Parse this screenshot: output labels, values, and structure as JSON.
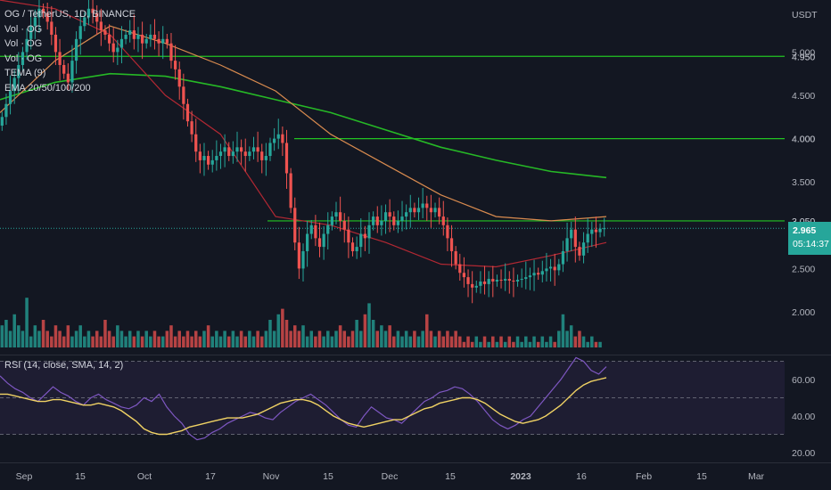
{
  "header": {
    "symbol_line": "OG / TetherUS, 1D, BINANCE",
    "indicators": [
      "Vol · OG",
      "Vol · OG",
      "Vol · OG",
      "TEMA (9)",
      "EMA 20/50/100/200"
    ]
  },
  "rsi_label": "RSI (14, close, SMA, 14, 2)",
  "price_axis_unit": "USDT",
  "current_price": "2.965",
  "countdown": "05:14:37",
  "colors": {
    "up": "#26a69a",
    "down": "#ef5350",
    "background": "#131722",
    "level_lines": "#22c422"
  },
  "chart_data": [
    {
      "type": "candlestick",
      "title": "OG / TetherUS, 1D, BINANCE",
      "y_ticks": [
        "5.000",
        "4.500",
        "4.000",
        "3.500",
        "2.500",
        "2.000"
      ],
      "x_ticks": [
        "Sep",
        "15",
        "Oct",
        "17",
        "Nov",
        "15",
        "Dec",
        "15",
        "2023",
        "16",
        "Feb",
        "15",
        "Mar"
      ],
      "horizontal_levels": [
        4.95,
        4.0,
        3.05
      ],
      "closes": [
        4.25,
        4.4,
        4.55,
        4.7,
        4.85,
        5.0,
        5.15,
        5.3,
        5.4,
        5.5,
        5.45,
        5.35,
        5.2,
        5.0,
        4.85,
        4.75,
        4.65,
        4.9,
        5.15,
        5.3,
        5.4,
        5.5,
        5.45,
        5.35,
        5.25,
        5.2,
        5.1,
        5.0,
        5.05,
        5.15,
        5.2,
        5.25,
        5.15,
        5.2,
        5.1,
        5.15,
        5.2,
        5.15,
        5.1,
        5.15,
        5.1,
        4.9,
        4.8,
        4.6,
        4.4,
        4.2,
        4.05,
        3.85,
        3.75,
        3.8,
        3.7,
        3.75,
        3.8,
        3.85,
        3.9,
        3.8,
        3.85,
        3.9,
        3.85,
        3.8,
        3.85,
        3.9,
        3.85,
        3.75,
        3.8,
        3.95,
        4.0,
        4.05,
        3.95,
        3.6,
        3.2,
        2.8,
        2.5,
        2.7,
        2.9,
        3.0,
        2.85,
        2.75,
        2.9,
        3.0,
        3.1,
        3.15,
        3.05,
        2.95,
        2.8,
        2.7,
        2.75,
        2.9,
        2.85,
        3.0,
        3.1,
        3.0,
        3.05,
        3.15,
        3.1,
        3.0,
        3.05,
        3.1,
        3.15,
        3.2,
        3.15,
        3.2,
        3.25,
        3.2,
        3.15,
        3.2,
        3.1,
        3.0,
        2.85,
        2.7,
        2.55,
        2.45,
        2.4,
        2.32,
        2.28,
        2.3,
        2.35,
        2.32,
        2.38,
        2.35,
        2.37,
        2.36,
        2.38,
        2.36,
        2.35,
        2.37,
        2.38,
        2.4,
        2.42,
        2.45,
        2.43,
        2.47,
        2.5,
        2.52,
        2.48,
        2.55,
        2.7,
        2.85,
        2.95,
        2.75,
        2.65,
        2.8,
        2.9,
        2.95,
        2.92,
        2.96,
        2.965
      ],
      "ema200": [
        4.45,
        4.65,
        4.75,
        4.72,
        4.6,
        4.45,
        4.3,
        4.1,
        3.9,
        3.75,
        3.62,
        3.55
      ],
      "ema100": [
        4.3,
        4.9,
        5.3,
        5.1,
        4.85,
        4.55,
        4.05,
        3.7,
        3.35,
        3.1,
        3.05,
        3.1
      ],
      "ema50": [
        5.6,
        5.5,
        5.2,
        4.5,
        4.05,
        3.1,
        3.0,
        2.8,
        2.55,
        2.52,
        2.65,
        2.8
      ]
    },
    {
      "type": "bar",
      "title": "Vol · OG",
      "values": [
        4,
        5,
        3,
        6,
        4,
        3,
        9,
        2,
        4,
        3,
        5,
        3,
        2,
        4,
        3,
        2,
        4,
        2,
        3,
        4,
        2,
        3,
        2,
        3,
        2,
        5,
        3,
        2,
        4,
        3,
        2,
        3,
        2,
        3,
        2,
        3,
        2,
        3,
        2,
        2,
        3,
        4,
        2,
        3,
        2,
        3,
        2,
        3,
        2,
        3,
        4,
        2,
        3,
        2,
        3,
        2,
        3,
        2,
        3,
        2,
        3,
        2,
        3,
        2,
        3,
        5,
        3,
        6,
        7,
        5,
        3,
        4,
        3,
        4,
        2,
        3,
        2,
        3,
        2,
        3,
        2,
        3,
        4,
        3,
        2,
        3,
        5,
        3,
        6,
        8,
        5,
        3,
        4,
        3,
        4,
        2,
        3,
        2,
        3,
        2,
        3,
        2,
        3,
        6,
        3,
        2,
        3,
        2,
        3,
        2,
        3,
        2,
        1,
        2,
        1,
        2,
        1,
        2,
        1,
        2,
        1,
        2,
        1,
        2,
        1,
        2,
        1,
        2,
        1,
        2,
        1,
        2,
        1,
        2,
        1,
        3,
        6,
        3,
        4,
        2,
        3,
        2,
        1,
        2,
        1,
        1
      ]
    },
    {
      "type": "line",
      "title": "RSI (14, close, SMA, 14, 2)",
      "y_ticks": [
        "60.00",
        "40.00",
        "20.00"
      ],
      "ylim": [
        20,
        70
      ],
      "bands": [
        30,
        50,
        70
      ],
      "rsi": [
        62,
        58,
        55,
        53,
        50,
        48,
        52,
        56,
        53,
        51,
        48,
        46,
        50,
        52,
        49,
        47,
        45,
        44,
        46,
        50,
        48,
        52,
        45,
        40,
        36,
        30,
        27,
        28,
        31,
        33,
        36,
        38,
        40,
        42,
        41,
        39,
        38,
        42,
        45,
        48,
        50,
        52,
        49,
        46,
        42,
        38,
        35,
        34,
        40,
        45,
        42,
        39,
        38,
        36,
        40,
        44,
        48,
        50,
        53,
        54,
        56,
        55,
        52,
        48,
        43,
        38,
        35,
        33,
        35,
        38,
        40,
        45,
        50,
        55,
        60,
        66,
        72,
        70,
        65,
        63,
        67
      ],
      "rsi_sma": [
        52,
        52,
        51,
        50,
        49,
        48,
        48,
        49,
        49,
        48,
        47,
        46,
        46,
        47,
        46,
        45,
        43,
        40,
        37,
        33,
        31,
        30,
        30,
        31,
        32,
        34,
        35,
        36,
        37,
        38,
        39,
        39,
        39,
        40,
        41,
        43,
        45,
        47,
        48,
        49,
        49,
        48,
        46,
        43,
        40,
        38,
        36,
        35,
        34,
        35,
        36,
        37,
        38,
        38,
        40,
        42,
        44,
        45,
        47,
        48,
        49,
        50,
        50,
        49,
        47,
        44,
        41,
        39,
        37,
        36,
        37,
        38,
        40,
        43,
        46,
        50,
        54,
        57,
        59,
        60,
        61
      ]
    }
  ]
}
